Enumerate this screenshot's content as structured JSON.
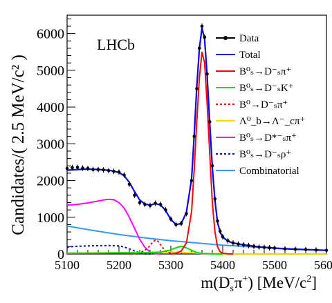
{
  "chart_data": {
    "type": "line",
    "experiment_label": "LHCb",
    "xlabel": {
      "main": "m(D",
      "sub": "s",
      "sup": "−",
      "after": "π",
      "sup2": "+",
      "tail": ") [MeV/c",
      "sup3": "2",
      "end": "]"
    },
    "ylabel": "Candidates/( 2.5 MeV/c² )",
    "xlim": [
      5100,
      5600
    ],
    "ylim": [
      0,
      6500
    ],
    "x_ticks": [
      "5100",
      "5200",
      "5300",
      "5400",
      "5500",
      "5600"
    ],
    "y_ticks": [
      "0",
      "1000",
      "2000",
      "3000",
      "4000",
      "5000",
      "6000"
    ],
    "legend": [
      {
        "key": "data",
        "label": "Data",
        "color": "#000000",
        "style": "marker"
      },
      {
        "key": "total",
        "label": "Total",
        "color": "#0000ff",
        "style": "solid"
      },
      {
        "key": "bs_dspi",
        "label": "B⁰ₛ→D⁻ₛπ⁺",
        "color": "#ff0000",
        "style": "solid"
      },
      {
        "key": "bs_dsk",
        "label": "B⁰ₛ→D⁻ₛK⁺",
        "color": "#00dd00",
        "style": "solid"
      },
      {
        "key": "b0_dspi",
        "label": "B⁰→D⁻ₛπ⁺",
        "color": "#ff0000",
        "style": "dotted"
      },
      {
        "key": "lb_lcpi",
        "label": "Λ⁰_b→Λ⁻_cπ⁺",
        "color": "#ffcc00",
        "style": "solid"
      },
      {
        "key": "bs_dsstpi",
        "label": "B⁰ₛ→D*⁻ₛπ⁺",
        "color": "#ff00ff",
        "style": "solid"
      },
      {
        "key": "bs_dsrho",
        "label": "B⁰ₛ→D⁻ₛρ⁺",
        "color": "#0000cc",
        "style": "dotted"
      },
      {
        "key": "comb",
        "label": "Combinatorial",
        "color": "#3399ff",
        "style": "solid"
      }
    ],
    "series": {
      "data": {
        "x": [
          5100,
          5110,
          5120,
          5130,
          5140,
          5150,
          5160,
          5170,
          5180,
          5190,
          5200,
          5210,
          5220,
          5230,
          5240,
          5250,
          5260,
          5270,
          5280,
          5290,
          5300,
          5310,
          5320,
          5330,
          5340,
          5345,
          5350,
          5355,
          5360,
          5365,
          5370,
          5375,
          5380,
          5385,
          5390,
          5395,
          5400,
          5410,
          5420,
          5430,
          5440,
          5450,
          5460,
          5470,
          5480,
          5490,
          5500,
          5520,
          5540,
          5560,
          5580,
          5600
        ],
        "y": [
          2330,
          2350,
          2360,
          2340,
          2330,
          2300,
          2300,
          2290,
          2270,
          2250,
          2230,
          2150,
          1900,
          1600,
          1400,
          1350,
          1320,
          1380,
          1350,
          1200,
          950,
          800,
          830,
          1100,
          2000,
          3200,
          4500,
          5600,
          6200,
          5900,
          4900,
          3600,
          2400,
          1500,
          900,
          620,
          470,
          360,
          300,
          270,
          250,
          230,
          210,
          190,
          180,
          170,
          160,
          140,
          130,
          120,
          110,
          100
        ]
      },
      "total": {
        "x": [
          5100,
          5120,
          5140,
          5160,
          5180,
          5200,
          5210,
          5220,
          5230,
          5240,
          5250,
          5260,
          5270,
          5280,
          5290,
          5300,
          5310,
          5320,
          5330,
          5340,
          5345,
          5350,
          5355,
          5360,
          5365,
          5370,
          5375,
          5380,
          5385,
          5390,
          5395,
          5400,
          5410,
          5420,
          5440,
          5460,
          5480,
          5500,
          5520,
          5540,
          5560,
          5580,
          5600
        ],
        "y": [
          2280,
          2300,
          2310,
          2300,
          2280,
          2220,
          2130,
          1950,
          1700,
          1470,
          1360,
          1330,
          1370,
          1340,
          1180,
          940,
          800,
          830,
          1130,
          2050,
          3250,
          4550,
          5600,
          6150,
          5850,
          4850,
          3550,
          2350,
          1450,
          860,
          600,
          460,
          350,
          300,
          250,
          210,
          180,
          160,
          140,
          130,
          120,
          110,
          100
        ]
      },
      "bs_dspi": {
        "x": [
          5300,
          5310,
          5320,
          5330,
          5340,
          5345,
          5350,
          5355,
          5360,
          5365,
          5370,
          5375,
          5380,
          5385,
          5390,
          5395,
          5400,
          5410,
          5420
        ],
        "y": [
          0,
          20,
          80,
          300,
          1150,
          2300,
          3600,
          4800,
          5500,
          5200,
          4100,
          2700,
          1400,
          600,
          200,
          60,
          20,
          5,
          0
        ]
      },
      "bs_dsk": {
        "x": [
          5100,
          5150,
          5200,
          5250,
          5280,
          5300,
          5310,
          5320,
          5330,
          5340,
          5350,
          5360,
          5380,
          5400
        ],
        "y": [
          20,
          25,
          30,
          35,
          50,
          110,
          170,
          210,
          170,
          100,
          40,
          15,
          5,
          0
        ]
      },
      "b0_dspi": {
        "x": [
          5220,
          5240,
          5255,
          5265,
          5270,
          5275,
          5280,
          5285,
          5290,
          5300,
          5310
        ],
        "y": [
          0,
          20,
          150,
          320,
          380,
          350,
          260,
          160,
          80,
          15,
          0
        ]
      },
      "lb_lcpi": {
        "x": [
          5100,
          5150,
          5200,
          5250,
          5280,
          5300,
          5320,
          5340,
          5360,
          5400,
          5500,
          5600
        ],
        "y": [
          25,
          30,
          35,
          40,
          45,
          50,
          45,
          30,
          15,
          5,
          0,
          0
        ]
      },
      "bs_dsstpi": {
        "x": [
          5100,
          5120,
          5140,
          5160,
          5170,
          5180,
          5190,
          5200,
          5210,
          5220,
          5230,
          5240,
          5250,
          5260,
          5270,
          5280
        ],
        "y": [
          1330,
          1350,
          1390,
          1440,
          1470,
          1490,
          1480,
          1400,
          1250,
          1000,
          700,
          400,
          180,
          50,
          10,
          0
        ]
      },
      "bs_dsrho": {
        "x": [
          5100,
          5120,
          5140,
          5160,
          5180,
          5200,
          5210,
          5220,
          5230,
          5240,
          5250,
          5260
        ],
        "y": [
          190,
          210,
          220,
          225,
          230,
          220,
          190,
          140,
          80,
          30,
          5,
          0
        ]
      },
      "comb": {
        "x": [
          5100,
          5150,
          5200,
          5250,
          5300,
          5350,
          5400,
          5450,
          5500,
          5550,
          5600
        ],
        "y": [
          760,
          640,
          530,
          440,
          360,
          300,
          240,
          200,
          160,
          130,
          100
        ]
      }
    }
  }
}
